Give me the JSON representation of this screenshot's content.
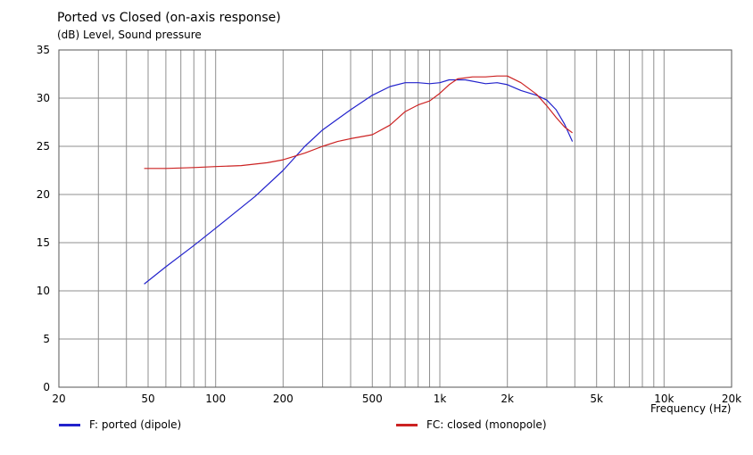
{
  "chart_data": {
    "type": "line",
    "title": "Ported vs Closed (on-axis response)",
    "ylabel": "(dB)  Level, Sound pressure",
    "xlabel": "Frequency  (Hz)",
    "xscale": "log",
    "xlim": [
      20,
      20000
    ],
    "ylim": [
      0,
      35
    ],
    "xticks": [
      {
        "v": 20,
        "label": "20"
      },
      {
        "v": 50,
        "label": "50"
      },
      {
        "v": 100,
        "label": "100"
      },
      {
        "v": 200,
        "label": "200"
      },
      {
        "v": 500,
        "label": "500"
      },
      {
        "v": 1000,
        "label": "1k"
      },
      {
        "v": 2000,
        "label": "2k"
      },
      {
        "v": 5000,
        "label": "5k"
      },
      {
        "v": 10000,
        "label": "10k"
      },
      {
        "v": 20000,
        "label": "20k"
      }
    ],
    "yticks": [
      0,
      5,
      10,
      15,
      20,
      25,
      30,
      35
    ],
    "grid": true,
    "legend_position": "bottom",
    "series": [
      {
        "name": "F: ported (dipole)",
        "color": "#2222cc",
        "points": [
          [
            48,
            10.7
          ],
          [
            60,
            12.5
          ],
          [
            80,
            14.7
          ],
          [
            100,
            16.5
          ],
          [
            150,
            19.8
          ],
          [
            200,
            22.5
          ],
          [
            250,
            25.0
          ],
          [
            300,
            26.7
          ],
          [
            400,
            28.8
          ],
          [
            500,
            30.3
          ],
          [
            600,
            31.2
          ],
          [
            700,
            31.6
          ],
          [
            800,
            31.6
          ],
          [
            900,
            31.5
          ],
          [
            1000,
            31.6
          ],
          [
            1100,
            31.9
          ],
          [
            1300,
            31.9
          ],
          [
            1600,
            31.5
          ],
          [
            1800,
            31.6
          ],
          [
            2000,
            31.4
          ],
          [
            2300,
            30.8
          ],
          [
            2700,
            30.3
          ],
          [
            3000,
            29.8
          ],
          [
            3300,
            28.8
          ],
          [
            3600,
            27.3
          ],
          [
            3900,
            25.5
          ]
        ]
      },
      {
        "name": "FC: closed (monopole)",
        "color": "#cc2222",
        "points": [
          [
            48,
            22.7
          ],
          [
            60,
            22.7
          ],
          [
            80,
            22.8
          ],
          [
            100,
            22.9
          ],
          [
            130,
            23.0
          ],
          [
            170,
            23.3
          ],
          [
            200,
            23.6
          ],
          [
            250,
            24.3
          ],
          [
            300,
            25.0
          ],
          [
            350,
            25.5
          ],
          [
            400,
            25.8
          ],
          [
            500,
            26.2
          ],
          [
            600,
            27.2
          ],
          [
            700,
            28.6
          ],
          [
            800,
            29.3
          ],
          [
            900,
            29.7
          ],
          [
            1000,
            30.5
          ],
          [
            1100,
            31.4
          ],
          [
            1200,
            32.0
          ],
          [
            1400,
            32.2
          ],
          [
            1600,
            32.2
          ],
          [
            1800,
            32.3
          ],
          [
            2000,
            32.3
          ],
          [
            2300,
            31.6
          ],
          [
            2700,
            30.4
          ],
          [
            3000,
            29.2
          ],
          [
            3300,
            28.0
          ],
          [
            3600,
            27.0
          ],
          [
            3900,
            26.4
          ]
        ]
      }
    ]
  }
}
